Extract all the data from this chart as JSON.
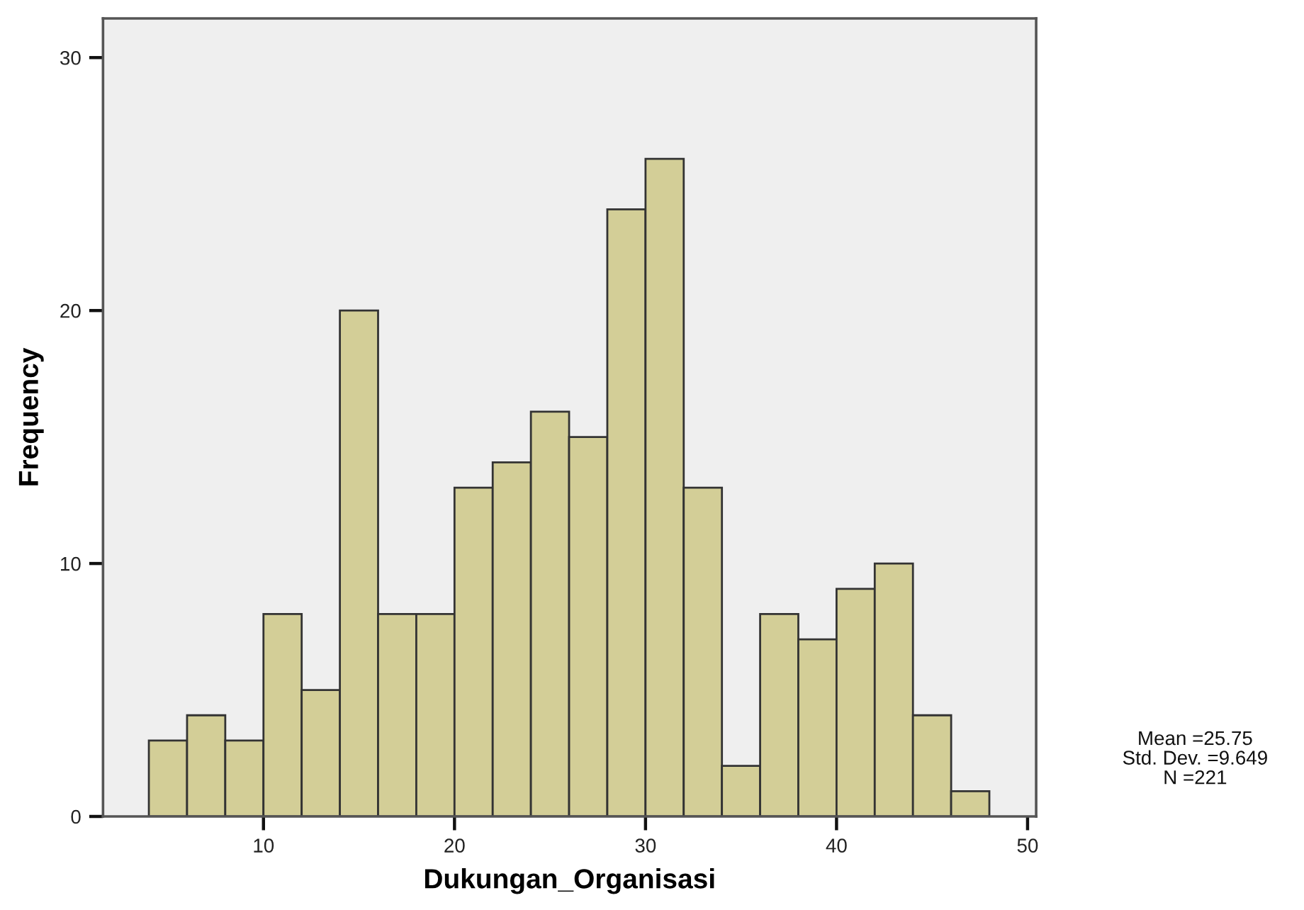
{
  "chart_data": {
    "type": "histogram",
    "bins": [
      4,
      6,
      8,
      10,
      12,
      14,
      16,
      18,
      20,
      22,
      24,
      26,
      28,
      30,
      32,
      34,
      36,
      38,
      40,
      42,
      44,
      46,
      48
    ],
    "values": [
      3,
      4,
      3,
      8,
      5,
      20,
      8,
      8,
      13,
      14,
      16,
      15,
      24,
      26,
      13,
      2,
      8,
      7,
      9,
      10,
      4,
      1
    ],
    "color": "#d3ce97",
    "xlabel": "Dukungan_Organisasi",
    "ylabel": "Frequency",
    "xlim": [
      1.6,
      50.45
    ],
    "ylim": [
      0,
      31.55
    ],
    "xticks": [
      10,
      20,
      30,
      40,
      50
    ],
    "yticks": [
      0,
      10,
      20,
      30
    ],
    "grid": false,
    "annotations": [
      "Mean =25.75",
      "Std. Dev. =9.649",
      "N =221"
    ]
  }
}
